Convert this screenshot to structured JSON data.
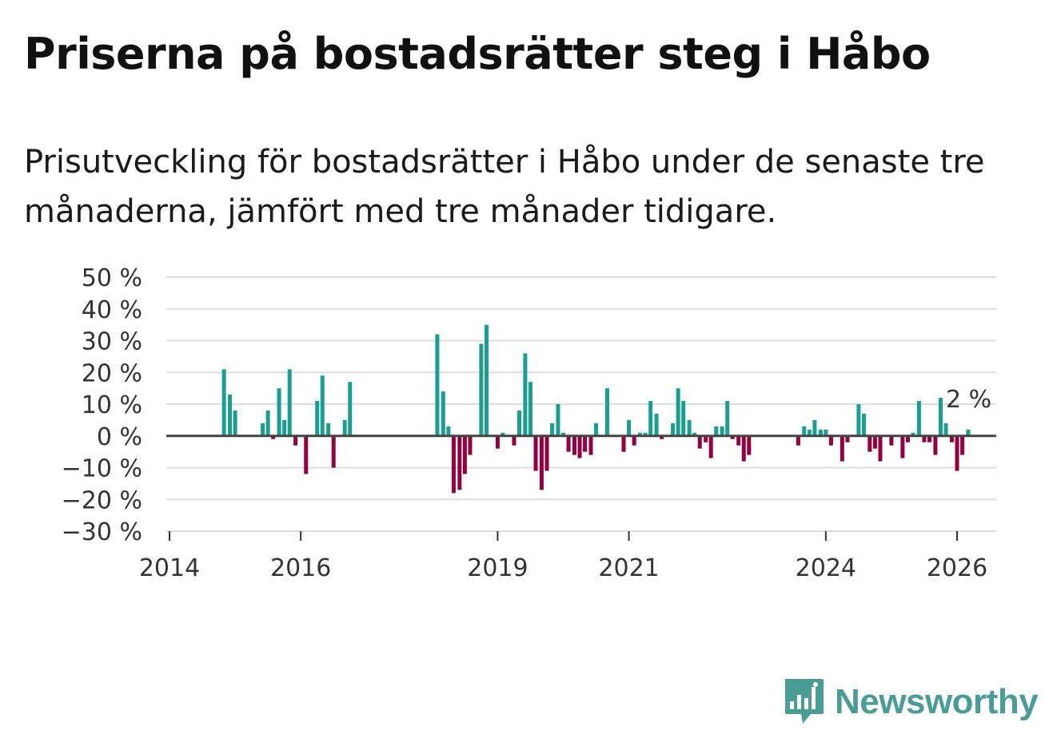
{
  "title": "Priserna på bostadsrätter steg i Håbo",
  "subtitle": "Prisutveckling för bostadsrätter i Håbo under de senaste tre månaderna, jämfört med tre månader tidigare.",
  "brand": {
    "name": "Newsworthy"
  },
  "colors": {
    "positive": "#1a9e93",
    "negative": "#93003f",
    "grid": "#dddddd",
    "zero": "#444444",
    "brand": "#4a9c96"
  },
  "chart_data": {
    "type": "bar",
    "title": "Priserna på bostadsrätter steg i Håbo",
    "xlabel": "",
    "ylabel": "",
    "ylim": [
      -30,
      50
    ],
    "y_ticks": [
      50,
      40,
      30,
      20,
      10,
      0,
      -10,
      -20,
      -30
    ],
    "y_tick_labels": [
      "50 %",
      "40 %",
      "30 %",
      "20 %",
      "10 %",
      "0 %",
      "−10 %",
      "−20 %",
      "−30 %"
    ],
    "x_range": [
      2014.0,
      2026.3
    ],
    "x_ticks": [
      2014,
      2016,
      2019,
      2021,
      2024,
      2026
    ],
    "x_tick_labels": [
      "2014",
      "2016",
      "2019",
      "2021",
      "2024",
      "2026"
    ],
    "grid": true,
    "last_value_label": "2 %",
    "series": [
      {
        "name": "Prisutveckling",
        "points": [
          {
            "x": 2014.83,
            "y": 21
          },
          {
            "x": 2014.92,
            "y": 13
          },
          {
            "x": 2015.0,
            "y": 8
          },
          {
            "x": 2015.42,
            "y": 4
          },
          {
            "x": 2015.5,
            "y": 8
          },
          {
            "x": 2015.58,
            "y": -1
          },
          {
            "x": 2015.67,
            "y": 15
          },
          {
            "x": 2015.75,
            "y": 5
          },
          {
            "x": 2015.83,
            "y": 21
          },
          {
            "x": 2015.92,
            "y": -3
          },
          {
            "x": 2016.08,
            "y": -12
          },
          {
            "x": 2016.25,
            "y": 11
          },
          {
            "x": 2016.33,
            "y": 19
          },
          {
            "x": 2016.42,
            "y": 4
          },
          {
            "x": 2016.5,
            "y": -10
          },
          {
            "x": 2016.67,
            "y": 5
          },
          {
            "x": 2016.75,
            "y": 17
          },
          {
            "x": 2018.08,
            "y": 32
          },
          {
            "x": 2018.17,
            "y": 14
          },
          {
            "x": 2018.25,
            "y": 3
          },
          {
            "x": 2018.33,
            "y": -18
          },
          {
            "x": 2018.42,
            "y": -17
          },
          {
            "x": 2018.5,
            "y": -12
          },
          {
            "x": 2018.58,
            "y": -6
          },
          {
            "x": 2018.75,
            "y": 29
          },
          {
            "x": 2018.83,
            "y": 35
          },
          {
            "x": 2019.0,
            "y": -4
          },
          {
            "x": 2019.08,
            "y": 1
          },
          {
            "x": 2019.25,
            "y": -3
          },
          {
            "x": 2019.33,
            "y": 8
          },
          {
            "x": 2019.42,
            "y": 26
          },
          {
            "x": 2019.5,
            "y": 17
          },
          {
            "x": 2019.58,
            "y": -11
          },
          {
            "x": 2019.67,
            "y": -17
          },
          {
            "x": 2019.75,
            "y": -11
          },
          {
            "x": 2019.83,
            "y": 4
          },
          {
            "x": 2019.92,
            "y": 10
          },
          {
            "x": 2020.0,
            "y": 1
          },
          {
            "x": 2020.08,
            "y": -5
          },
          {
            "x": 2020.17,
            "y": -6
          },
          {
            "x": 2020.25,
            "y": -7
          },
          {
            "x": 2020.33,
            "y": -5
          },
          {
            "x": 2020.42,
            "y": -6
          },
          {
            "x": 2020.5,
            "y": 4
          },
          {
            "x": 2020.67,
            "y": 15
          },
          {
            "x": 2020.92,
            "y": -5
          },
          {
            "x": 2021.0,
            "y": 5
          },
          {
            "x": 2021.08,
            "y": -3
          },
          {
            "x": 2021.17,
            "y": 1
          },
          {
            "x": 2021.25,
            "y": 1
          },
          {
            "x": 2021.33,
            "y": 11
          },
          {
            "x": 2021.42,
            "y": 7
          },
          {
            "x": 2021.5,
            "y": -1
          },
          {
            "x": 2021.67,
            "y": 4
          },
          {
            "x": 2021.75,
            "y": 15
          },
          {
            "x": 2021.83,
            "y": 11
          },
          {
            "x": 2021.92,
            "y": 5
          },
          {
            "x": 2022.0,
            "y": 1
          },
          {
            "x": 2022.08,
            "y": -4
          },
          {
            "x": 2022.17,
            "y": -2
          },
          {
            "x": 2022.25,
            "y": -7
          },
          {
            "x": 2022.33,
            "y": 3
          },
          {
            "x": 2022.42,
            "y": 3
          },
          {
            "x": 2022.5,
            "y": 11
          },
          {
            "x": 2022.58,
            "y": -1
          },
          {
            "x": 2022.67,
            "y": -3
          },
          {
            "x": 2022.75,
            "y": -8
          },
          {
            "x": 2022.83,
            "y": -6
          },
          {
            "x": 2023.58,
            "y": -3
          },
          {
            "x": 2023.67,
            "y": 3
          },
          {
            "x": 2023.75,
            "y": 2
          },
          {
            "x": 2023.83,
            "y": 5
          },
          {
            "x": 2023.92,
            "y": 2
          },
          {
            "x": 2024.0,
            "y": 2
          },
          {
            "x": 2024.08,
            "y": -3
          },
          {
            "x": 2024.25,
            "y": -8
          },
          {
            "x": 2024.33,
            "y": -2
          },
          {
            "x": 2024.5,
            "y": 10
          },
          {
            "x": 2024.58,
            "y": 7
          },
          {
            "x": 2024.67,
            "y": -5
          },
          {
            "x": 2024.75,
            "y": -4
          },
          {
            "x": 2024.83,
            "y": -8
          },
          {
            "x": 2025.0,
            "y": -3
          },
          {
            "x": 2025.17,
            "y": -7
          },
          {
            "x": 2025.25,
            "y": -2
          },
          {
            "x": 2025.33,
            "y": 1
          },
          {
            "x": 2025.42,
            "y": 11
          },
          {
            "x": 2025.5,
            "y": -2
          },
          {
            "x": 2025.58,
            "y": -2
          },
          {
            "x": 2025.67,
            "y": -6
          },
          {
            "x": 2025.75,
            "y": 12
          },
          {
            "x": 2025.83,
            "y": 4
          },
          {
            "x": 2025.92,
            "y": -2
          },
          {
            "x": 2026.0,
            "y": -11
          },
          {
            "x": 2026.08,
            "y": -6
          },
          {
            "x": 2026.17,
            "y": 2
          }
        ]
      }
    ]
  }
}
